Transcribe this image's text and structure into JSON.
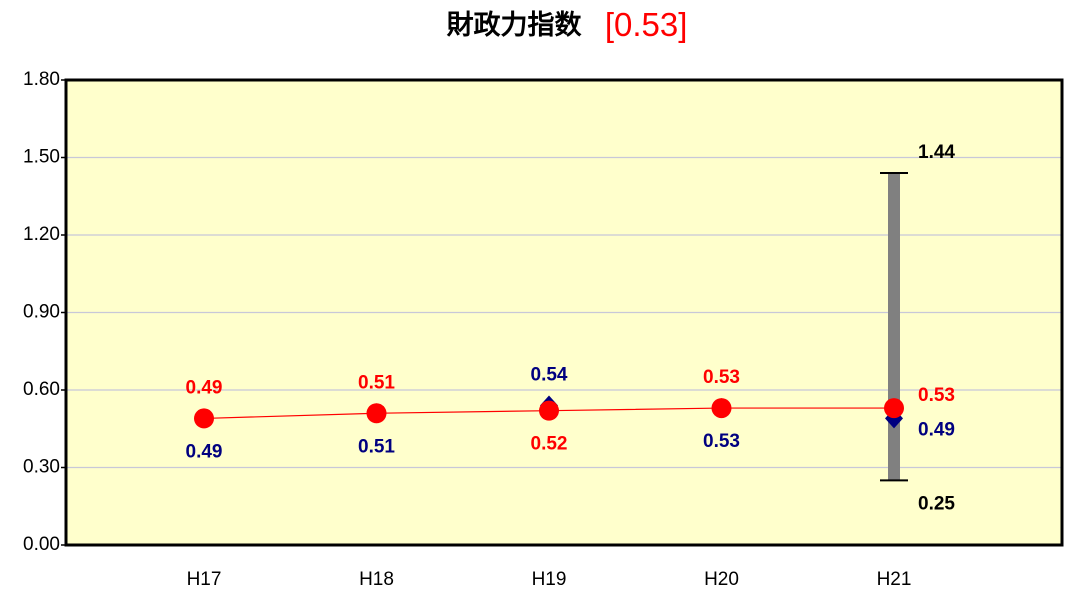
{
  "chart_data": {
    "type": "line",
    "title": "財政力指数",
    "title_value": "[0.53]",
    "categories": [
      "H17",
      "H18",
      "H19",
      "H20",
      "H21"
    ],
    "series": [
      {
        "color": "#ff0000",
        "marker": "circle",
        "line": true,
        "values": [
          0.49,
          0.51,
          0.52,
          0.53,
          0.53
        ]
      },
      {
        "color": "#000080",
        "marker": "diamond",
        "line": false,
        "values": [
          0.49,
          0.51,
          0.54,
          0.53,
          0.49
        ]
      }
    ],
    "range": {
      "color": "#808080",
      "min": [
        null,
        null,
        null,
        null,
        0.25
      ],
      "max": [
        null,
        null,
        null,
        null,
        1.44
      ]
    },
    "ylim": [
      0,
      1.8
    ],
    "yticks": [
      {
        "value": 0,
        "label": "0.00"
      },
      {
        "value": 0.3,
        "label": "0.30"
      },
      {
        "value": 0.6,
        "label": "0.60"
      },
      {
        "value": 0.9,
        "label": "0.90"
      },
      {
        "value": 1.2,
        "label": "1.20"
      },
      {
        "value": 1.5,
        "label": "1.50"
      },
      {
        "value": 1.8,
        "label": "1.80"
      }
    ],
    "grid": true,
    "background": "#ffffcc"
  }
}
